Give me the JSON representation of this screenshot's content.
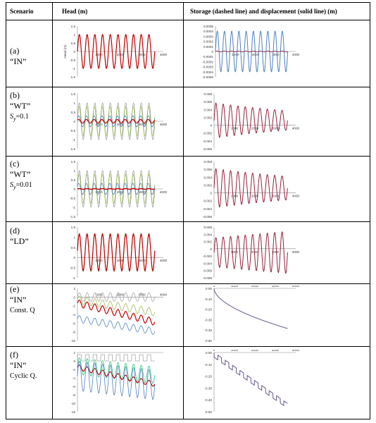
{
  "table": {
    "headers": {
      "scenario": "Scenario",
      "head": "Head (m)",
      "storage": "Storage (dashed line) and displacement (solid line) (m)"
    },
    "rows": [
      {
        "id": "a",
        "letter": "(a)",
        "name": "“IN”",
        "extra": ""
      },
      {
        "id": "b",
        "letter": "(b)",
        "name": "“WT”",
        "extra": "Sy=0.1"
      },
      {
        "id": "c",
        "letter": "(c)",
        "name": "“WT”",
        "extra": "Sy=0.01"
      },
      {
        "id": "d",
        "letter": "(d)",
        "name": "“LD”",
        "extra": ""
      },
      {
        "id": "e",
        "letter": "(e)",
        "name": "“IN”",
        "extra": "Const. Q"
      },
      {
        "id": "f",
        "letter": "(f)",
        "name": "“IN”",
        "extra": "Cyclic Q."
      }
    ]
  },
  "colors": {
    "red": "#c00000",
    "blue": "#4f81bd",
    "green": "#9bbb59",
    "gray": "#a5a5a5",
    "purple": "#7e3f6e",
    "teal": "#2ec27e"
  },
  "chart_data": [
    {
      "id": "a-head",
      "type": "line",
      "ylabel": "Head (m)",
      "xlim": [
        0,
        4000
      ],
      "ylim": [
        -1.5,
        1.5
      ],
      "yticks": [
        "1.5",
        "1",
        "0.5",
        "0",
        "-0.5",
        "-1",
        "-1.5"
      ],
      "xticks": [
        "1000",
        "2000",
        "3000",
        "4000"
      ],
      "series": [
        {
          "color": "red",
          "values": "sin, amplitude 1, 10 cycles"
        }
      ]
    },
    {
      "id": "a-storage",
      "type": "line",
      "xlim": [
        0,
        4000
      ],
      "ylim": [
        -0.0005,
        0.0005
      ],
      "yticks": [
        "0.0005",
        "0.0004",
        "0.0003",
        "0.0002",
        "0.0001",
        "0",
        "-0.0001",
        "-0.0002",
        "-0.0003",
        "-0.0004",
        "-0.0005"
      ],
      "xticks": [
        "1000",
        "2000",
        "3000",
        "4000"
      ]
    },
    {
      "id": "b-head",
      "type": "line",
      "xlim": [
        0,
        4000
      ],
      "ylim": [
        -1.5,
        1.5
      ],
      "yticks": [
        "1.5",
        "1",
        "0.5",
        "0",
        "-0.5",
        "-1",
        "-1.5"
      ],
      "xticks": [
        "1000",
        "2000",
        "3000",
        "4000"
      ]
    },
    {
      "id": "b-storage",
      "type": "line",
      "xlim": [
        0,
        4000
      ],
      "ylim": [
        -0.006,
        0.008
      ],
      "yticks": [
        "0.008",
        "0.006",
        "0.004",
        "0.002",
        "0",
        "-0.002",
        "-0.004",
        "-0.006"
      ],
      "xticks": [
        "1000",
        "2000",
        "3000",
        "4000"
      ]
    },
    {
      "id": "c-head",
      "type": "line",
      "xlim": [
        0,
        4000
      ],
      "ylim": [
        -1.5,
        1.5
      ],
      "yticks": [
        "1.5",
        "1",
        "0.5",
        "0",
        "-0.5",
        "-1",
        "-1.5"
      ],
      "xticks": [
        "1000",
        "2000",
        "3000",
        "4000"
      ]
    },
    {
      "id": "c-storage",
      "type": "line",
      "xlim": [
        0,
        4000
      ],
      "ylim": [
        -0.006,
        0.008
      ],
      "yticks": [
        "0.008",
        "0.006",
        "0.004",
        "0.002",
        "0",
        "-0.002",
        "-0.004",
        "-0.006"
      ],
      "xticks": [
        "1000",
        "2000",
        "3000",
        "4000"
      ]
    },
    {
      "id": "d-head",
      "type": "line",
      "xlim": [
        0,
        4000
      ],
      "ylim": [
        -1,
        1.5
      ],
      "yticks": [
        "1.5",
        "1",
        "0.5",
        "0",
        "-0.5",
        "-1"
      ],
      "xticks": [
        "1000",
        "2000",
        "3000",
        "4000"
      ]
    },
    {
      "id": "d-storage",
      "type": "line",
      "xlim": [
        0,
        4000
      ],
      "ylim": [
        -0.008,
        0.006
      ],
      "yticks": [
        "0.006",
        "0.004",
        "0.002",
        "0",
        "-0.002",
        "-0.004",
        "-0.006",
        "-0.008"
      ],
      "xticks": [
        "1000",
        "2000",
        "3000",
        "4000"
      ]
    },
    {
      "id": "e-head",
      "type": "line",
      "xlim": [
        0,
        4000
      ],
      "ylim": [
        -10,
        2
      ],
      "yticks": [
        "2",
        "0",
        "-2",
        "-4",
        "-6",
        "-8",
        "-10"
      ],
      "xticks": [
        "1000",
        "2000",
        "3000",
        "4000"
      ]
    },
    {
      "id": "e-storage",
      "type": "line",
      "xlim": [
        0,
        4000
      ],
      "ylim": [
        -0.5,
        0
      ],
      "yticks": [
        "0.00",
        "-0.10",
        "-0.20",
        "-0.30",
        "-0.40",
        "-0.50"
      ],
      "xticks": [
        "0",
        "1000",
        "2000",
        "3000",
        "4000"
      ]
    },
    {
      "id": "f-head",
      "type": "line",
      "xlim": [
        0,
        4000
      ],
      "ylim": [
        -12,
        2
      ],
      "yticks": [
        "2",
        "0",
        "-2",
        "-4",
        "-6",
        "-8",
        "-10",
        "-12"
      ],
      "xticks": []
    },
    {
      "id": "f-storage",
      "type": "line",
      "xlim": [
        0,
        4000
      ],
      "ylim": [
        -0.5,
        0
      ],
      "yticks": [
        "0.00",
        "-0.10",
        "-0.20",
        "-0.30",
        "-0.40",
        "-0.50"
      ],
      "xticks": [
        "0",
        "1000",
        "2000",
        "3000",
        "4000"
      ]
    }
  ]
}
